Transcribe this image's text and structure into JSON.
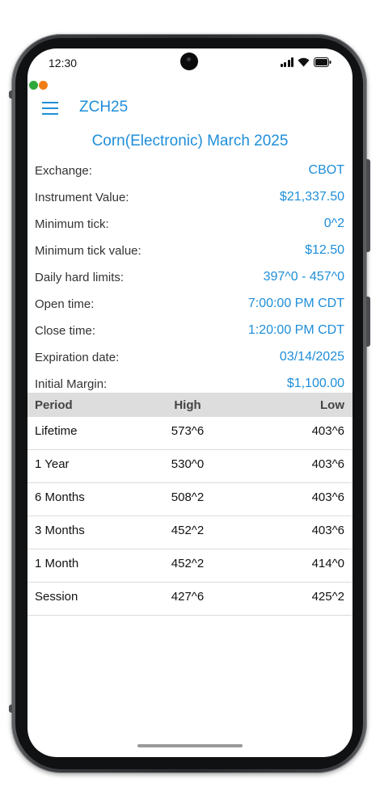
{
  "status_bar": {
    "time": "12:30",
    "icons": [
      "signal-icon",
      "wifi-icon",
      "battery-icon"
    ]
  },
  "indicator_dots": [
    {
      "name": "green-dot",
      "color": "#2ea83a"
    },
    {
      "name": "orange-dot",
      "color": "#f07c16"
    }
  ],
  "header": {
    "menu_icon": "hamburger-menu-icon",
    "title": "ZCH25"
  },
  "contract": {
    "title": "Corn(Electronic) March 2025",
    "details": [
      {
        "label": "Exchange:",
        "value": "CBOT"
      },
      {
        "label": "Instrument Value:",
        "value": "$21,337.50"
      },
      {
        "label": "Minimum tick:",
        "value": "0^2"
      },
      {
        "label": "Minimum tick value:",
        "value": "$12.50"
      },
      {
        "label": "Daily hard limits:",
        "value": "397^0 - 457^0"
      },
      {
        "label": "Open time:",
        "value": "7:00:00 PM CDT"
      },
      {
        "label": "Close time:",
        "value": "1:20:00 PM CDT"
      },
      {
        "label": "Expiration date:",
        "value": "03/14/2025"
      },
      {
        "label": "Initial Margin:",
        "value": "$1,100.00"
      }
    ]
  },
  "range_table": {
    "columns": [
      "Period",
      "High",
      "Low"
    ],
    "rows": [
      {
        "period": "Lifetime",
        "high": "573^6",
        "low": "403^6"
      },
      {
        "period": "1 Year",
        "high": "530^0",
        "low": "403^6"
      },
      {
        "period": "6 Months",
        "high": "508^2",
        "low": "403^6"
      },
      {
        "period": "3 Months",
        "high": "452^2",
        "low": "403^6"
      },
      {
        "period": "1 Month",
        "high": "452^2",
        "low": "414^0"
      },
      {
        "period": "Session",
        "high": "427^6",
        "low": "425^2"
      }
    ]
  },
  "colors": {
    "accent": "#1e8ed8",
    "table_header_bg": "#dddddd"
  }
}
